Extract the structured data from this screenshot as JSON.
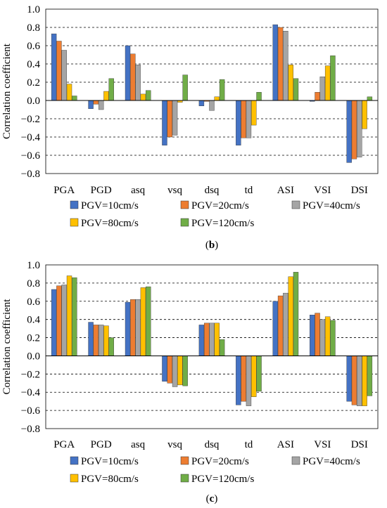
{
  "chart_data": [
    {
      "type": "bar",
      "panel_label": "b",
      "ylabel": "Correlation coefficient",
      "ylim": [
        -0.8,
        1.0
      ],
      "yticks": [
        "1.0",
        "0.8",
        "0.6",
        "0.4",
        "0.2",
        "0.0",
        "−0.2",
        "−0.4",
        "−0.6",
        "−0.8"
      ],
      "grid": "horizontal-dashed",
      "legend_position": "bottom",
      "categories": [
        "PGA",
        "PGD",
        "asq",
        "vsq",
        "dsq",
        "td",
        "ASI",
        "VSI",
        "DSI"
      ],
      "series": [
        {
          "name": "PGV=10cm/s",
          "color": "#4472C4",
          "values": [
            0.73,
            -0.09,
            0.6,
            -0.49,
            -0.06,
            -0.49,
            0.83,
            -0.01,
            -0.68
          ]
        },
        {
          "name": "PGV=20cm/s",
          "color": "#ED7D31",
          "values": [
            0.65,
            -0.04,
            0.51,
            -0.4,
            -0.01,
            -0.41,
            0.8,
            0.09,
            -0.64
          ]
        },
        {
          "name": "PGV=40cm/s",
          "color": "#A5A5A5",
          "values": [
            0.55,
            -0.1,
            0.39,
            -0.38,
            -0.11,
            -0.41,
            0.76,
            0.26,
            -0.62
          ]
        },
        {
          "name": "PGV=80cm/s",
          "color": "#FFC000",
          "values": [
            0.18,
            0.1,
            0.07,
            -0.02,
            0.04,
            -0.27,
            0.39,
            0.38,
            -0.31
          ]
        },
        {
          "name": "PGV=120cm/s",
          "color": "#70AD47",
          "values": [
            0.05,
            0.24,
            0.11,
            0.28,
            0.23,
            0.09,
            0.24,
            0.49,
            0.04
          ]
        }
      ]
    },
    {
      "type": "bar",
      "panel_label": "c",
      "ylabel": "Correlation coefficient",
      "ylim": [
        -0.8,
        1.0
      ],
      "yticks": [
        "1.0",
        "0.8",
        "0.6",
        "0.4",
        "0.2",
        "0.0",
        "−0.2",
        "−0.4",
        "−0.6",
        "−0.8"
      ],
      "grid": "horizontal-dashed",
      "legend_position": "bottom",
      "categories": [
        "PGA",
        "PGD",
        "asq",
        "vsq",
        "dsq",
        "td",
        "ASI",
        "VSI",
        "DSI"
      ],
      "series": [
        {
          "name": "PGV=10cm/s",
          "color": "#4472C4",
          "values": [
            0.73,
            0.37,
            0.59,
            -0.28,
            0.34,
            -0.54,
            0.6,
            0.45,
            -0.5
          ]
        },
        {
          "name": "PGV=20cm/s",
          "color": "#ED7D31",
          "values": [
            0.77,
            0.34,
            0.62,
            -0.3,
            0.36,
            -0.5,
            0.66,
            0.47,
            -0.54
          ]
        },
        {
          "name": "PGV=40cm/s",
          "color": "#A5A5A5",
          "values": [
            0.78,
            0.34,
            0.62,
            -0.34,
            0.36,
            -0.55,
            0.69,
            0.4,
            -0.55
          ]
        },
        {
          "name": "PGV=80cm/s",
          "color": "#FFC000",
          "values": [
            0.88,
            0.33,
            0.75,
            -0.32,
            0.36,
            -0.45,
            0.87,
            0.43,
            -0.55
          ]
        },
        {
          "name": "PGV=120cm/s",
          "color": "#70AD47",
          "values": [
            0.86,
            0.2,
            0.76,
            -0.33,
            0.18,
            -0.39,
            0.92,
            0.39,
            -0.44
          ]
        }
      ]
    }
  ]
}
